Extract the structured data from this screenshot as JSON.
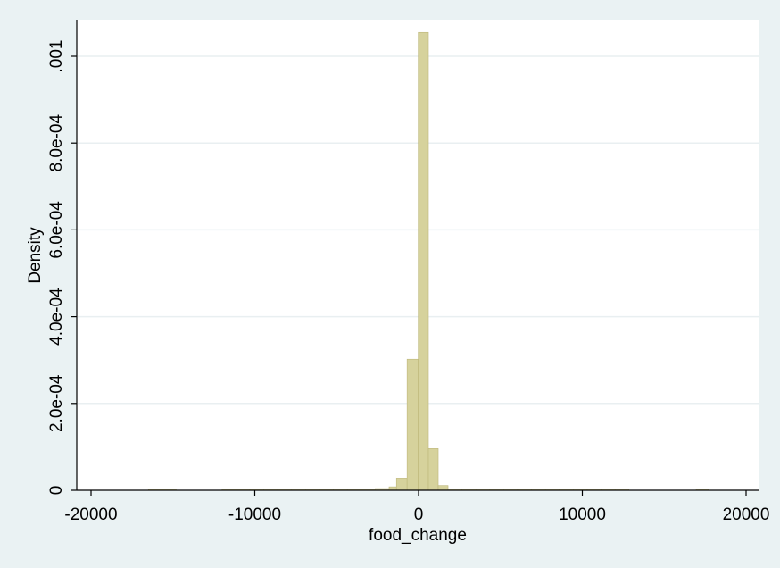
{
  "chart_data": {
    "type": "bar",
    "subtype": "histogram",
    "title": "",
    "xlabel": "food_change",
    "ylabel": "Density",
    "xlim": [
      -20000,
      20000
    ],
    "ylim": [
      0,
      0.001
    ],
    "x_ticks": [
      -20000,
      -10000,
      0,
      10000,
      20000
    ],
    "x_tick_labels": [
      "-20000",
      "-10000",
      "0",
      "10000",
      "20000"
    ],
    "y_ticks": [
      0,
      0.0002,
      0.0004,
      0.0006,
      0.0008,
      0.001
    ],
    "y_tick_labels": [
      "0",
      "2.0e-04",
      "4.0e-04",
      "6.0e-04",
      "8.0e-04",
      ".001"
    ],
    "grid": true,
    "legend": "none",
    "colors": {
      "bar_fill": "#d6d29c",
      "bar_stroke": "#bdb77a",
      "background": "#eaf2f3",
      "plot_background": "#ffffff",
      "grid": "#e9eff1"
    },
    "bins": [
      {
        "x0": -16500,
        "x1": -15650,
        "density": 2.5e-06
      },
      {
        "x0": -15650,
        "x1": -14800,
        "density": 2.5e-06
      },
      {
        "x0": -12000,
        "x1": -11150,
        "density": 1.8e-06
      },
      {
        "x0": -11150,
        "x1": -10300,
        "density": 1.8e-06
      },
      {
        "x0": -10300,
        "x1": -9450,
        "density": 1.8e-06
      },
      {
        "x0": -9450,
        "x1": -8600,
        "density": 1.8e-06
      },
      {
        "x0": -8600,
        "x1": -7750,
        "density": 1.8e-06
      },
      {
        "x0": -7750,
        "x1": -6900,
        "density": 1.8e-06
      },
      {
        "x0": -6900,
        "x1": -6050,
        "density": 1.8e-06
      },
      {
        "x0": -6050,
        "x1": -5200,
        "density": 1.8e-06
      },
      {
        "x0": -5200,
        "x1": -4350,
        "density": 1.8e-06
      },
      {
        "x0": -4350,
        "x1": -3500,
        "density": 1.8e-06
      },
      {
        "x0": -3500,
        "x1": -2650,
        "density": 2.5e-06
      },
      {
        "x0": -2650,
        "x1": -1800,
        "density": 4e-06
      },
      {
        "x0": -1800,
        "x1": -1350,
        "density": 8e-06
      },
      {
        "x0": -1350,
        "x1": -700,
        "density": 2.8e-05
      },
      {
        "x0": -700,
        "x1": -20,
        "density": 0.000302
      },
      {
        "x0": -20,
        "x1": 600,
        "density": 0.001055
      },
      {
        "x0": 600,
        "x1": 1200,
        "density": 9.6e-05
      },
      {
        "x0": 1200,
        "x1": 1800,
        "density": 1.1e-05
      },
      {
        "x0": 1800,
        "x1": 2650,
        "density": 3e-06
      },
      {
        "x0": 2650,
        "x1": 3500,
        "density": 2.5e-06
      },
      {
        "x0": 3500,
        "x1": 4350,
        "density": 1.8e-06
      },
      {
        "x0": 4350,
        "x1": 5200,
        "density": 1.8e-06
      },
      {
        "x0": 5200,
        "x1": 6050,
        "density": 1.8e-06
      },
      {
        "x0": 6050,
        "x1": 6900,
        "density": 1.8e-06
      },
      {
        "x0": 6900,
        "x1": 7750,
        "density": 1.8e-06
      },
      {
        "x0": 7750,
        "x1": 8600,
        "density": 1.8e-06
      },
      {
        "x0": 8600,
        "x1": 9450,
        "density": 1.8e-06
      },
      {
        "x0": 9450,
        "x1": 10300,
        "density": 1.8e-06
      },
      {
        "x0": 10300,
        "x1": 11150,
        "density": 1.8e-06
      },
      {
        "x0": 11150,
        "x1": 12000,
        "density": 1.8e-06
      },
      {
        "x0": 12000,
        "x1": 12850,
        "density": 1.8e-06
      },
      {
        "x0": 16950,
        "x1": 17700,
        "density": 2.5e-06
      }
    ]
  }
}
